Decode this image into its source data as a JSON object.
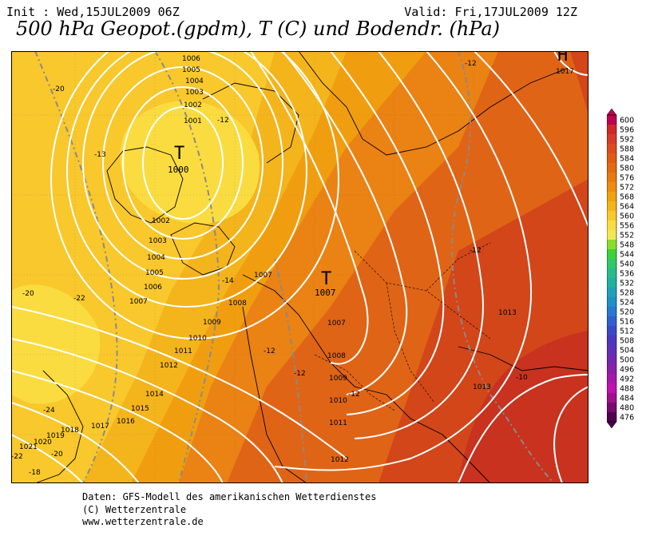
{
  "header": {
    "init": "Init : Wed,15JUL2009 06Z",
    "valid": "Valid: Fri,17JUL2009 12Z",
    "title": "500 hPa Geopot.(gpdm), T (C) und Bodendr. (hPa)"
  },
  "map": {
    "pressure_systems": [
      {
        "type": "T",
        "value": "1000"
      },
      {
        "type": "T",
        "value": "1007"
      },
      {
        "type": "H",
        "value": "1017"
      }
    ],
    "isobar_labels": [
      "1006",
      "1005",
      "1004",
      "1003",
      "1002",
      "1001",
      "1002",
      "1003",
      "1004",
      "1005",
      "1006",
      "1007",
      "1008",
      "1009",
      "1010",
      "1011",
      "1012",
      "1014",
      "1015",
      "1016",
      "1017",
      "1018",
      "1019",
      "1020",
      "1021",
      "1007",
      "1007",
      "1008",
      "1009",
      "1010",
      "1011",
      "1012",
      "1013",
      "1013",
      "1017"
    ],
    "temperature_labels": [
      "-20",
      "-13",
      "-12",
      "-12",
      "-14",
      "-12",
      "-12",
      "-12",
      "-12",
      "-20",
      "-22",
      "-24",
      "-20",
      "-18",
      "-10",
      "-22"
    ]
  },
  "colorbar": {
    "values": [
      "600",
      "596",
      "592",
      "588",
      "584",
      "580",
      "576",
      "572",
      "568",
      "564",
      "560",
      "556",
      "552",
      "548",
      "544",
      "540",
      "536",
      "532",
      "528",
      "524",
      "520",
      "516",
      "512",
      "508",
      "504",
      "500",
      "496",
      "492",
      "488",
      "484",
      "480",
      "476"
    ],
    "colors": [
      "#c00050",
      "#d02828",
      "#d83a28",
      "#dc4a1e",
      "#e05a14",
      "#e46a10",
      "#e87a10",
      "#ec8c10",
      "#f0a010",
      "#f4b41c",
      "#f8c82c",
      "#fadc40",
      "#f0e858",
      "#8cdc2c",
      "#3cd23c",
      "#30c868",
      "#28bc8c",
      "#20b0a4",
      "#20a0b8",
      "#2090c8",
      "#2878d0",
      "#3060d0",
      "#3c48c8",
      "#4c38c0",
      "#6030b8",
      "#7428b0",
      "#8a20a8",
      "#a818a8",
      "#c010b0",
      "#a0108c",
      "#78086c",
      "#500050"
    ]
  },
  "footer": {
    "line1": "Daten: GFS-Modell des amerikanischen Wetterdienstes",
    "line2": "(C) Wetterzentrale",
    "line3": "www.wetterzentrale.de"
  }
}
